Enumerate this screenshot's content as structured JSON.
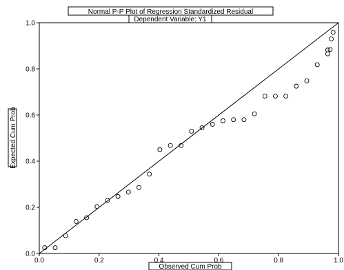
{
  "chart_data": {
    "type": "scatter",
    "title": "Normal P-P Plot of Regression Standardized Residual",
    "subtitle": "Dependent Variable: Y1",
    "xlabel": "Observed Cum Prob",
    "ylabel": "Expected Cum Prob",
    "xlim": [
      0,
      1
    ],
    "ylim": [
      0,
      1
    ],
    "x_ticks": [
      "0.0",
      "0.2",
      "0.4",
      "0.6",
      "0.8",
      "1.0"
    ],
    "y_ticks": [
      "0.0",
      "0.2",
      "0.4",
      "0.6",
      "0.8",
      "1.0"
    ],
    "grid": false,
    "reference_line": [
      [
        0,
        0
      ],
      [
        1,
        1
      ]
    ],
    "points": [
      {
        "x": 0.018,
        "y": 0.025
      },
      {
        "x": 0.053,
        "y": 0.025
      },
      {
        "x": 0.088,
        "y": 0.077
      },
      {
        "x": 0.123,
        "y": 0.139
      },
      {
        "x": 0.158,
        "y": 0.155
      },
      {
        "x": 0.193,
        "y": 0.203
      },
      {
        "x": 0.228,
        "y": 0.23
      },
      {
        "x": 0.263,
        "y": 0.247
      },
      {
        "x": 0.298,
        "y": 0.266
      },
      {
        "x": 0.333,
        "y": 0.286
      },
      {
        "x": 0.368,
        "y": 0.344
      },
      {
        "x": 0.403,
        "y": 0.45
      },
      {
        "x": 0.438,
        "y": 0.468
      },
      {
        "x": 0.474,
        "y": 0.468
      },
      {
        "x": 0.509,
        "y": 0.53
      },
      {
        "x": 0.544,
        "y": 0.545
      },
      {
        "x": 0.579,
        "y": 0.56
      },
      {
        "x": 0.614,
        "y": 0.575
      },
      {
        "x": 0.649,
        "y": 0.58
      },
      {
        "x": 0.684,
        "y": 0.58
      },
      {
        "x": 0.719,
        "y": 0.605
      },
      {
        "x": 0.754,
        "y": 0.682
      },
      {
        "x": 0.789,
        "y": 0.682
      },
      {
        "x": 0.824,
        "y": 0.682
      },
      {
        "x": 0.859,
        "y": 0.725
      },
      {
        "x": 0.894,
        "y": 0.748
      },
      {
        "x": 0.929,
        "y": 0.818
      },
      {
        "x": 0.964,
        "y": 0.865
      },
      {
        "x": 0.964,
        "y": 0.882
      },
      {
        "x": 0.972,
        "y": 0.884
      },
      {
        "x": 0.976,
        "y": 0.93
      },
      {
        "x": 0.982,
        "y": 0.958
      }
    ]
  }
}
